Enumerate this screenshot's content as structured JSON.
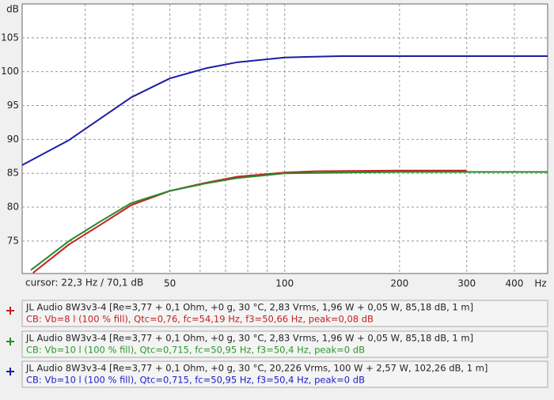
{
  "chart_data": {
    "type": "line",
    "log_x": true,
    "grid": true,
    "y_unit": "dB",
    "x_unit": "Hz",
    "cursor": "cursor: 22,3 Hz / 70,1 dB",
    "xlim": [
      20.5,
      489
    ],
    "ylim": [
      70.2,
      110
    ],
    "xticks": [
      50,
      100,
      200,
      300,
      400
    ],
    "x_minor_ticks": [
      30,
      40,
      60,
      70,
      80,
      90
    ],
    "yticks": [
      75,
      80,
      85,
      90,
      95,
      100,
      105
    ],
    "series": [
      {
        "name": "JL Audio 8W3v3-4 [Re=3,77 + 0,1 Ohm, +0 g, 30 °C, 2,83 Vrms, 1,96 W + 0,05 W, 85,18 dB, 1 m]",
        "detail": "CB: Vb=8 l (100 % fill), Qtc=0,76, fc=54,19 Hz, f3=50,66 Hz, peak=0,08 dB",
        "color": "#c42020",
        "text_color": "#c42020",
        "x": [
          21.9,
          27.2,
          32.9,
          39.6,
          50,
          62.1,
          75.2,
          100,
          121,
          200,
          300
        ],
        "values": [
          70.3,
          74.5,
          77.4,
          80.3,
          82.4,
          83.6,
          84.5,
          85.1,
          85.3,
          85.4,
          85.4
        ]
      },
      {
        "name": "JL Audio 8W3v3-4 [Re=3,77 + 0,1 Ohm, +0 g, 30 °C, 2,83 Vrms, 1,96 W + 0,05 W, 85,18 dB, 1 m]",
        "detail": "CB: Vb=10 l (100 % fill), Qtc=0,715, fc=50,95 Hz, f3=50,4 Hz, peak=0 dB",
        "color": "#2a8a2a",
        "text_color": "#2a9a2a",
        "x": [
          21.6,
          27.2,
          32.9,
          39.6,
          50,
          62.1,
          75.2,
          100,
          200,
          489
        ],
        "values": [
          70.7,
          75.0,
          77.9,
          80.6,
          82.4,
          83.5,
          84.3,
          85.0,
          85.2,
          85.2
        ]
      },
      {
        "name": "JL Audio 8W3v3-4 [Re=3,77 + 0,1 Ohm, +0 g, 30 °C, 20,226 Vrms, 100 W + 2,57 W, 102,26 dB, 1 m]",
        "detail": "CB: Vb=10 l (100 % fill), Qtc=0,715, fc=50,95 Hz, f3=50,4 Hz, peak=0 dB",
        "color": "#1c1ca8",
        "text_color": "#2020c8",
        "x": [
          20.5,
          27.2,
          32.9,
          39.6,
          50,
          62.1,
          75.2,
          100,
          140,
          200,
          489
        ],
        "values": [
          86.2,
          89.9,
          93.1,
          96.2,
          99.0,
          100.5,
          101.4,
          102.1,
          102.3,
          102.3,
          102.3
        ]
      }
    ]
  }
}
